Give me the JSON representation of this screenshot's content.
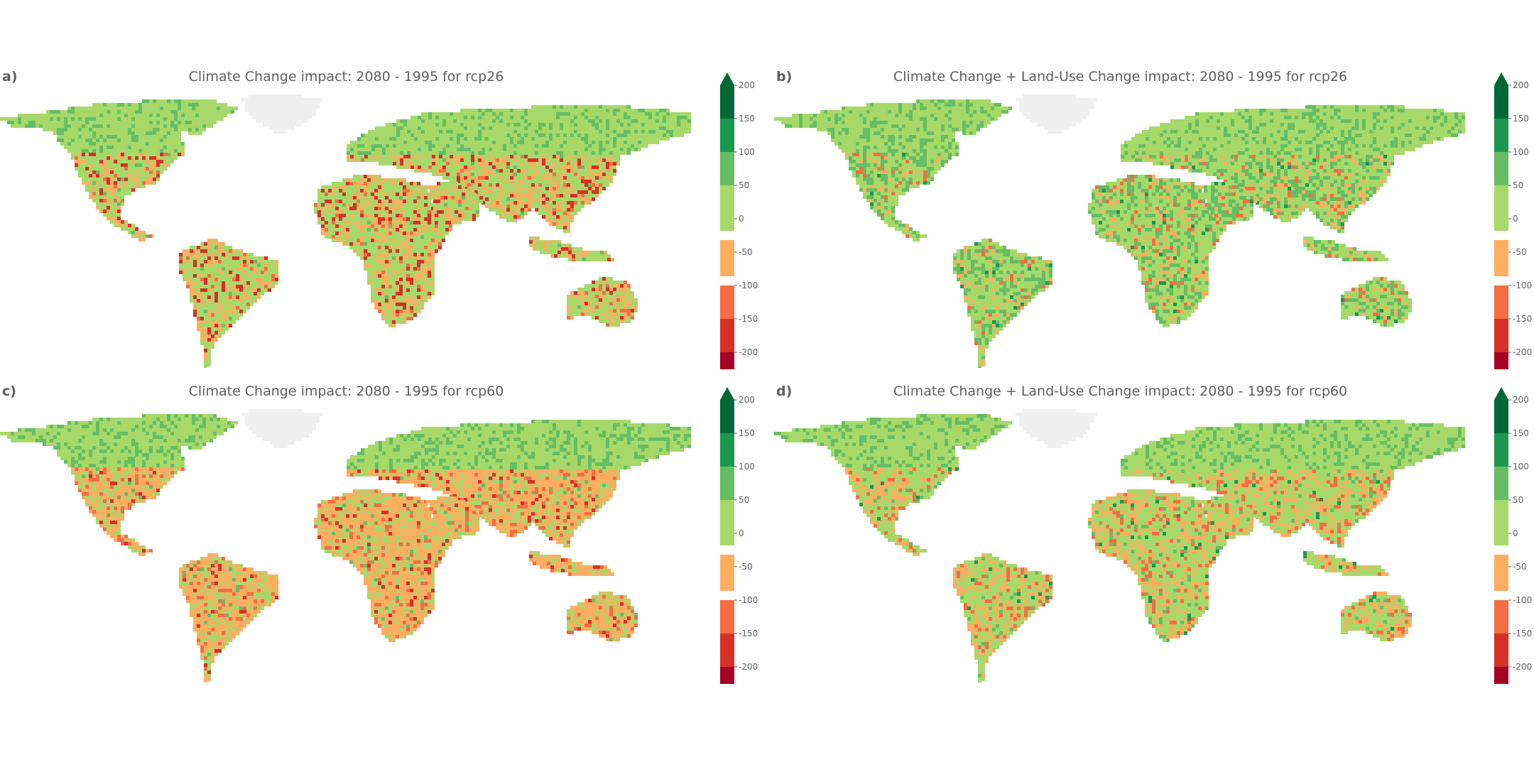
{
  "colorbar": {
    "ticks": [
      "200",
      "150",
      "100",
      "50",
      "0",
      "-50",
      "-100",
      "-150",
      "-200"
    ],
    "bands": [
      "#006837",
      "#1a9850",
      "#66bd63",
      "#a6d96a",
      "#ffffff",
      "#fdae61",
      "#f46d43",
      "#d73027",
      "#a50026"
    ],
    "extend_top_color": "#006837",
    "extend_bottom_color": "#a50026"
  },
  "colors": {
    "land_no_data": "#f0f0f0",
    "ocean": "#ffffff"
  },
  "panels": [
    {
      "label": "a)",
      "title": "Climate Change impact: 2080 - 1995 for rcp26",
      "scenario": "rcp26",
      "dominant": [
        "#a6d96a",
        "#fdae61"
      ],
      "hotspots": [
        "#d73027",
        "#f46d43",
        "#66bd63"
      ]
    },
    {
      "label": "b)",
      "title": "Climate Change + Land-Use Change impact: 2080 - 1995 for rcp26",
      "scenario": "rcp26",
      "dominant": [
        "#a6d96a",
        "#66bd63"
      ],
      "hotspots": [
        "#fdae61",
        "#f46d43",
        "#1a9850"
      ]
    },
    {
      "label": "c)",
      "title": "Climate Change impact: 2080 - 1995 for rcp60",
      "scenario": "rcp60",
      "dominant": [
        "#fdae61",
        "#a6d96a"
      ],
      "hotspots": [
        "#f46d43",
        "#d73027",
        "#66bd63"
      ]
    },
    {
      "label": "d)",
      "title": "Climate Change + Land-Use Change impact: 2080 - 1995 for rcp60",
      "scenario": "rcp60",
      "dominant": [
        "#a6d96a",
        "#fdae61"
      ],
      "hotspots": [
        "#f46d43",
        "#66bd63",
        "#1a9850"
      ]
    }
  ]
}
